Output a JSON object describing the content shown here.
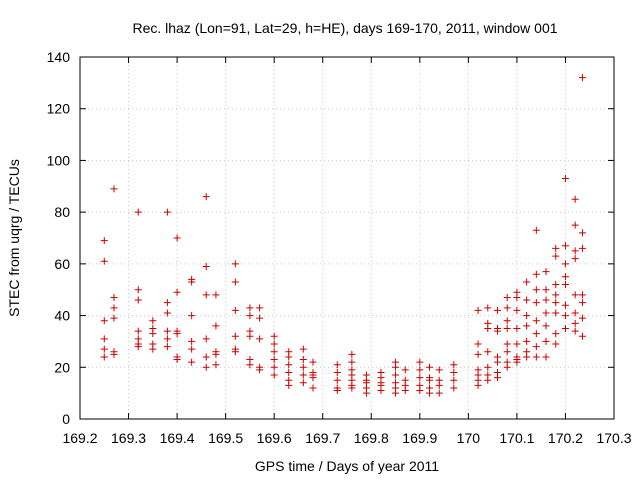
{
  "chart_data": {
    "type": "scatter",
    "title": "Rec. lhaz (Lon=91, Lat=29, h=HE), days 169-170, 2011, window 001",
    "xlabel": "GPS time / Days of year 2011",
    "ylabel": "STEC from uqrg / TECUs",
    "xlim": [
      169.2,
      170.3
    ],
    "ylim": [
      0,
      140
    ],
    "x_ticks": [
      "169.2",
      "169.3",
      "169.4",
      "169.5",
      "169.6",
      "169.7",
      "169.8",
      "169.9",
      "170",
      "170.1",
      "170.2",
      "170.3"
    ],
    "y_ticks": [
      "0",
      "20",
      "40",
      "60",
      "80",
      "100",
      "120",
      "140"
    ],
    "grid": true,
    "marker": "plus",
    "color": "#cc0000",
    "series": [
      {
        "points": [
          [
            169.25,
            69
          ],
          [
            169.25,
            61
          ],
          [
            169.25,
            38
          ],
          [
            169.25,
            31
          ],
          [
            169.25,
            27
          ],
          [
            169.25,
            24
          ],
          [
            169.27,
            89
          ],
          [
            169.27,
            47
          ],
          [
            169.27,
            43
          ],
          [
            169.27,
            39
          ],
          [
            169.27,
            26
          ],
          [
            169.27,
            25
          ],
          [
            169.32,
            80
          ],
          [
            169.32,
            50
          ],
          [
            169.32,
            46
          ],
          [
            169.32,
            34
          ],
          [
            169.32,
            31
          ],
          [
            169.32,
            29
          ],
          [
            169.32,
            28
          ],
          [
            169.35,
            38
          ],
          [
            169.35,
            35
          ],
          [
            169.35,
            33
          ],
          [
            169.35,
            29
          ],
          [
            169.35,
            27
          ],
          [
            169.38,
            80
          ],
          [
            169.38,
            45
          ],
          [
            169.38,
            41
          ],
          [
            169.38,
            34
          ],
          [
            169.38,
            31
          ],
          [
            169.38,
            28
          ],
          [
            169.4,
            70
          ],
          [
            169.4,
            49
          ],
          [
            169.4,
            34
          ],
          [
            169.4,
            33
          ],
          [
            169.4,
            24
          ],
          [
            169.4,
            23
          ],
          [
            169.43,
            54
          ],
          [
            169.43,
            53
          ],
          [
            169.43,
            40
          ],
          [
            169.43,
            30
          ],
          [
            169.43,
            27
          ],
          [
            169.43,
            22
          ],
          [
            169.46,
            86
          ],
          [
            169.46,
            59
          ],
          [
            169.46,
            48
          ],
          [
            169.46,
            31
          ],
          [
            169.46,
            24
          ],
          [
            169.46,
            20
          ],
          [
            169.48,
            48
          ],
          [
            169.48,
            36
          ],
          [
            169.48,
            26
          ],
          [
            169.48,
            25
          ],
          [
            169.48,
            21
          ],
          [
            169.52,
            60
          ],
          [
            169.52,
            53
          ],
          [
            169.52,
            42
          ],
          [
            169.52,
            32
          ],
          [
            169.52,
            27
          ],
          [
            169.52,
            26
          ],
          [
            169.55,
            43
          ],
          [
            169.55,
            40
          ],
          [
            169.55,
            34
          ],
          [
            169.55,
            32
          ],
          [
            169.55,
            23
          ],
          [
            169.55,
            21
          ],
          [
            169.57,
            43
          ],
          [
            169.57,
            39
          ],
          [
            169.57,
            31
          ],
          [
            169.57,
            20
          ],
          [
            169.57,
            19
          ],
          [
            169.6,
            32
          ],
          [
            169.6,
            29
          ],
          [
            169.6,
            26
          ],
          [
            169.6,
            23
          ],
          [
            169.6,
            20
          ],
          [
            169.6,
            17
          ],
          [
            169.63,
            26
          ],
          [
            169.63,
            24
          ],
          [
            169.63,
            21
          ],
          [
            169.63,
            18
          ],
          [
            169.63,
            15
          ],
          [
            169.63,
            13
          ],
          [
            169.66,
            27
          ],
          [
            169.66,
            23
          ],
          [
            169.66,
            20
          ],
          [
            169.66,
            17
          ],
          [
            169.66,
            14
          ],
          [
            169.68,
            22
          ],
          [
            169.68,
            18
          ],
          [
            169.68,
            17
          ],
          [
            169.68,
            16
          ],
          [
            169.68,
            12
          ],
          [
            169.73,
            21
          ],
          [
            169.73,
            18
          ],
          [
            169.73,
            15
          ],
          [
            169.73,
            12
          ],
          [
            169.73,
            11
          ],
          [
            169.76,
            25
          ],
          [
            169.76,
            22
          ],
          [
            169.76,
            19
          ],
          [
            169.76,
            17
          ],
          [
            169.76,
            15
          ],
          [
            169.76,
            13
          ],
          [
            169.76,
            12
          ],
          [
            169.79,
            17
          ],
          [
            169.79,
            15
          ],
          [
            169.79,
            14
          ],
          [
            169.79,
            12
          ],
          [
            169.79,
            10
          ],
          [
            169.82,
            18
          ],
          [
            169.82,
            16
          ],
          [
            169.82,
            14
          ],
          [
            169.82,
            13
          ],
          [
            169.82,
            11
          ],
          [
            169.85,
            22
          ],
          [
            169.85,
            20
          ],
          [
            169.85,
            17
          ],
          [
            169.85,
            14
          ],
          [
            169.85,
            12
          ],
          [
            169.85,
            10
          ],
          [
            169.87,
            19
          ],
          [
            169.87,
            15
          ],
          [
            169.87,
            13
          ],
          [
            169.87,
            11
          ],
          [
            169.9,
            22
          ],
          [
            169.9,
            19
          ],
          [
            169.9,
            16
          ],
          [
            169.9,
            13
          ],
          [
            169.9,
            11
          ],
          [
            169.92,
            20
          ],
          [
            169.92,
            16
          ],
          [
            169.92,
            15
          ],
          [
            169.92,
            12
          ],
          [
            169.92,
            10
          ],
          [
            169.94,
            19
          ],
          [
            169.94,
            15
          ],
          [
            169.94,
            13
          ],
          [
            169.94,
            10
          ],
          [
            169.97,
            21
          ],
          [
            169.97,
            18
          ],
          [
            169.97,
            15
          ],
          [
            169.97,
            12
          ],
          [
            170.02,
            42
          ],
          [
            170.02,
            29
          ],
          [
            170.02,
            25
          ],
          [
            170.02,
            19
          ],
          [
            170.02,
            17
          ],
          [
            170.02,
            15
          ],
          [
            170.02,
            13
          ],
          [
            170.04,
            43
          ],
          [
            170.04,
            37
          ],
          [
            170.04,
            35
          ],
          [
            170.04,
            26
          ],
          [
            170.04,
            20
          ],
          [
            170.04,
            17
          ],
          [
            170.04,
            15
          ],
          [
            170.06,
            42
          ],
          [
            170.06,
            35
          ],
          [
            170.06,
            34
          ],
          [
            170.06,
            24
          ],
          [
            170.06,
            22
          ],
          [
            170.06,
            18
          ],
          [
            170.06,
            16
          ],
          [
            170.08,
            47
          ],
          [
            170.08,
            43
          ],
          [
            170.08,
            38
          ],
          [
            170.08,
            35
          ],
          [
            170.08,
            29
          ],
          [
            170.08,
            26
          ],
          [
            170.08,
            22
          ],
          [
            170.08,
            20
          ],
          [
            170.1,
            49
          ],
          [
            170.1,
            47
          ],
          [
            170.1,
            42
          ],
          [
            170.1,
            35
          ],
          [
            170.1,
            29
          ],
          [
            170.1,
            24
          ],
          [
            170.1,
            23
          ],
          [
            170.1,
            22
          ],
          [
            170.12,
            53
          ],
          [
            170.12,
            46
          ],
          [
            170.12,
            40
          ],
          [
            170.12,
            36
          ],
          [
            170.12,
            30
          ],
          [
            170.12,
            26
          ],
          [
            170.12,
            24
          ],
          [
            170.14,
            73
          ],
          [
            170.14,
            56
          ],
          [
            170.14,
            50
          ],
          [
            170.14,
            45
          ],
          [
            170.14,
            38
          ],
          [
            170.14,
            33
          ],
          [
            170.14,
            28
          ],
          [
            170.14,
            24
          ],
          [
            170.16,
            57
          ],
          [
            170.16,
            50
          ],
          [
            170.16,
            46
          ],
          [
            170.16,
            41
          ],
          [
            170.16,
            36
          ],
          [
            170.16,
            30
          ],
          [
            170.16,
            24
          ],
          [
            170.18,
            66
          ],
          [
            170.18,
            63
          ],
          [
            170.18,
            52
          ],
          [
            170.18,
            48
          ],
          [
            170.18,
            45
          ],
          [
            170.18,
            41
          ],
          [
            170.18,
            33
          ],
          [
            170.18,
            29
          ],
          [
            170.2,
            93
          ],
          [
            170.2,
            67
          ],
          [
            170.2,
            60
          ],
          [
            170.2,
            55
          ],
          [
            170.2,
            52
          ],
          [
            170.2,
            44
          ],
          [
            170.2,
            40
          ],
          [
            170.2,
            35
          ],
          [
            170.22,
            85
          ],
          [
            170.22,
            75
          ],
          [
            170.22,
            65
          ],
          [
            170.22,
            62
          ],
          [
            170.22,
            48
          ],
          [
            170.22,
            41
          ],
          [
            170.22,
            37
          ],
          [
            170.22,
            34
          ],
          [
            170.235,
            132
          ],
          [
            170.235,
            72
          ],
          [
            170.235,
            66
          ],
          [
            170.235,
            48
          ],
          [
            170.235,
            45
          ],
          [
            170.235,
            39
          ],
          [
            170.235,
            32
          ]
        ]
      }
    ]
  }
}
